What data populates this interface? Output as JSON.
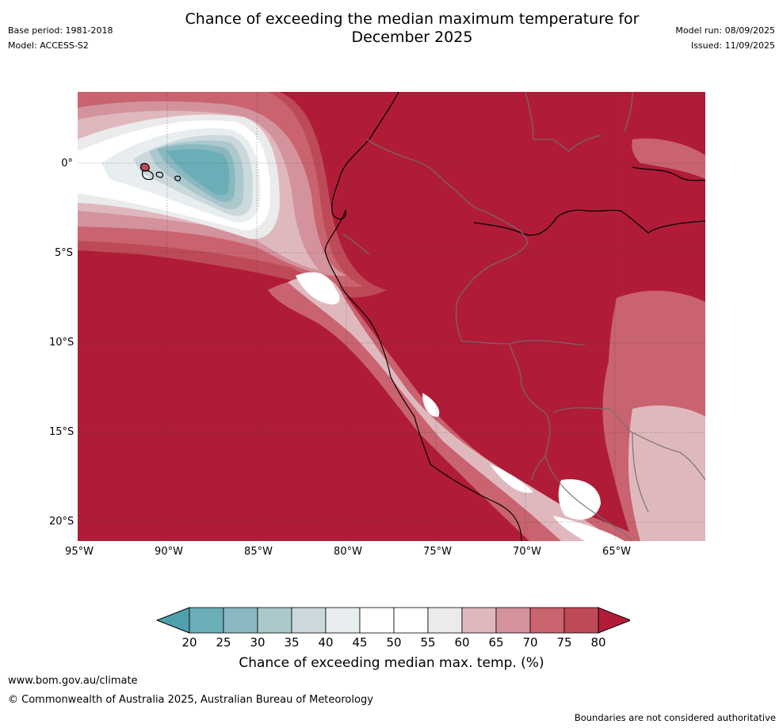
{
  "header": {
    "title_line1": "Chance of exceeding the median maximum temperature for",
    "title_line2": "December 2025",
    "base_period": "Base period: 1981-2018",
    "model": "Model: ACCESS-S2",
    "model_run": "Model run: 08/09/2025",
    "issued": "Issued: 11/09/2025"
  },
  "map": {
    "lon_ticks": [
      "95°W",
      "90°W",
      "85°W",
      "80°W",
      "75°W",
      "70°W",
      "65°W"
    ],
    "lat_ticks": [
      "0°",
      "5°S",
      "10°S",
      "15°S",
      "20°S"
    ],
    "region": "Western South America and eastern Pacific (Ecuador, Peru, Galápagos Islands)"
  },
  "colorbar": {
    "title": "Chance of exceeding median max. temp. (%)",
    "labels": [
      "20",
      "25",
      "30",
      "35",
      "40",
      "45",
      "50",
      "55",
      "60",
      "65",
      "70",
      "75",
      "80"
    ],
    "colors": [
      "#6aaeb8",
      "#8ab8c1",
      "#abc8cd",
      "#cbd9dd",
      "#e8eef0",
      "#ffffff",
      "#ffffff",
      "#ebebeb",
      "#dfb8be",
      "#d4939c",
      "#c9636f",
      "#be4a58"
    ],
    "under_color": "#4fa0ad",
    "over_color": "#b01c38"
  },
  "footer": {
    "website": "www.bom.gov.au/climate",
    "copyright": "© Commonwealth of Australia 2025, Australian Bureau of Meteorology",
    "disclaimer": "Boundaries are not considered authoritative"
  }
}
